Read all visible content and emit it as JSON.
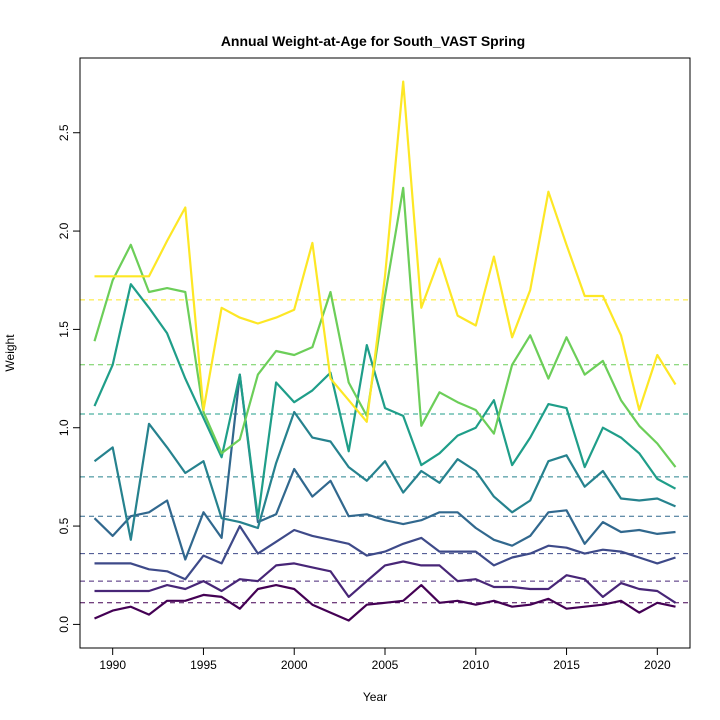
{
  "chart_data": {
    "type": "line",
    "title": "Annual Weight-at-Age for South_VAST Spring",
    "xlabel": "Year",
    "ylabel": "Weight",
    "xlim": [
      1988.2,
      2021.8
    ],
    "ylim": [
      -0.12,
      2.88
    ],
    "xticks": [
      1990,
      1995,
      2000,
      2005,
      2010,
      2015,
      2020
    ],
    "yticks": [
      0.0,
      0.5,
      1.0,
      1.5,
      2.0,
      2.5
    ],
    "grid": false,
    "x": [
      1989,
      1990,
      1991,
      1992,
      1993,
      1994,
      1995,
      1996,
      1997,
      1998,
      1999,
      2000,
      2001,
      2002,
      2003,
      2004,
      2005,
      2006,
      2007,
      2008,
      2009,
      2010,
      2011,
      2012,
      2013,
      2014,
      2015,
      2016,
      2017,
      2018,
      2019,
      2020,
      2021
    ],
    "series": [
      {
        "color": "#440154",
        "mean": 0.11,
        "values": [
          0.03,
          0.07,
          0.09,
          0.05,
          0.12,
          0.12,
          0.15,
          0.14,
          0.08,
          0.18,
          0.2,
          0.18,
          0.1,
          0.06,
          0.02,
          0.1,
          0.11,
          0.12,
          0.2,
          0.11,
          0.12,
          0.1,
          0.12,
          0.09,
          0.1,
          0.13,
          0.08,
          0.09,
          0.1,
          0.12,
          0.06,
          0.11,
          0.09
        ]
      },
      {
        "color": "#482677",
        "mean": 0.22,
        "values": [
          0.17,
          0.17,
          0.17,
          0.17,
          0.2,
          0.18,
          0.22,
          0.17,
          0.23,
          0.22,
          0.3,
          0.31,
          0.29,
          0.27,
          0.14,
          0.22,
          0.3,
          0.32,
          0.3,
          0.3,
          0.22,
          0.23,
          0.19,
          0.19,
          0.18,
          0.18,
          0.25,
          0.23,
          0.14,
          0.21,
          0.18,
          0.17,
          0.11
        ]
      },
      {
        "color": "#3E4A89",
        "mean": 0.36,
        "values": [
          0.31,
          0.31,
          0.31,
          0.28,
          0.27,
          0.23,
          0.35,
          0.31,
          0.5,
          0.36,
          0.42,
          0.48,
          0.45,
          0.43,
          0.41,
          0.35,
          0.37,
          0.41,
          0.44,
          0.37,
          0.37,
          0.37,
          0.3,
          0.34,
          0.36,
          0.4,
          0.39,
          0.36,
          0.38,
          0.37,
          0.34,
          0.31,
          0.34
        ]
      },
      {
        "color": "#31688E",
        "mean": 0.55,
        "values": [
          0.54,
          0.45,
          0.55,
          0.57,
          0.63,
          0.33,
          0.57,
          0.44,
          1.27,
          0.52,
          0.56,
          0.79,
          0.65,
          0.73,
          0.55,
          0.56,
          0.53,
          0.51,
          0.53,
          0.57,
          0.57,
          0.49,
          0.43,
          0.4,
          0.45,
          0.57,
          0.58,
          0.41,
          0.52,
          0.47,
          0.48,
          0.46,
          0.47
        ]
      },
      {
        "color": "#26828E",
        "mean": 0.75,
        "values": [
          0.83,
          0.9,
          0.43,
          1.02,
          0.9,
          0.77,
          0.83,
          0.54,
          0.52,
          0.49,
          0.82,
          1.08,
          0.95,
          0.93,
          0.8,
          0.73,
          0.83,
          0.67,
          0.78,
          0.72,
          0.84,
          0.78,
          0.65,
          0.57,
          0.63,
          0.83,
          0.86,
          0.7,
          0.78,
          0.64,
          0.63,
          0.64,
          0.6
        ]
      },
      {
        "color": "#1F9E89",
        "mean": 1.07,
        "values": [
          1.11,
          1.32,
          1.73,
          1.61,
          1.48,
          1.25,
          1.05,
          0.85,
          1.27,
          0.54,
          1.23,
          1.13,
          1.19,
          1.28,
          0.88,
          1.42,
          1.1,
          1.06,
          0.81,
          0.87,
          0.96,
          1.0,
          1.14,
          0.81,
          0.95,
          1.12,
          1.1,
          0.8,
          1.0,
          0.95,
          0.87,
          0.74,
          0.69
        ]
      },
      {
        "color": "#6CCE59",
        "mean": 1.32,
        "values": [
          1.44,
          1.75,
          1.93,
          1.69,
          1.71,
          1.69,
          1.08,
          0.87,
          0.94,
          1.27,
          1.39,
          1.37,
          1.41,
          1.69,
          1.23,
          1.06,
          1.67,
          2.22,
          1.01,
          1.18,
          1.13,
          1.09,
          0.97,
          1.32,
          1.47,
          1.25,
          1.46,
          1.27,
          1.34,
          1.14,
          1.01,
          0.92,
          0.8
        ]
      },
      {
        "color": "#FDE725",
        "mean": 1.65,
        "values": [
          1.77,
          1.77,
          1.77,
          1.77,
          1.95,
          2.12,
          1.09,
          1.61,
          1.56,
          1.53,
          1.56,
          1.6,
          1.94,
          1.25,
          1.14,
          1.03,
          1.77,
          2.76,
          1.61,
          1.86,
          1.57,
          1.52,
          1.87,
          1.46,
          1.7,
          2.2,
          1.93,
          1.67,
          1.67,
          1.47,
          1.09,
          1.37,
          1.22
        ]
      }
    ]
  }
}
